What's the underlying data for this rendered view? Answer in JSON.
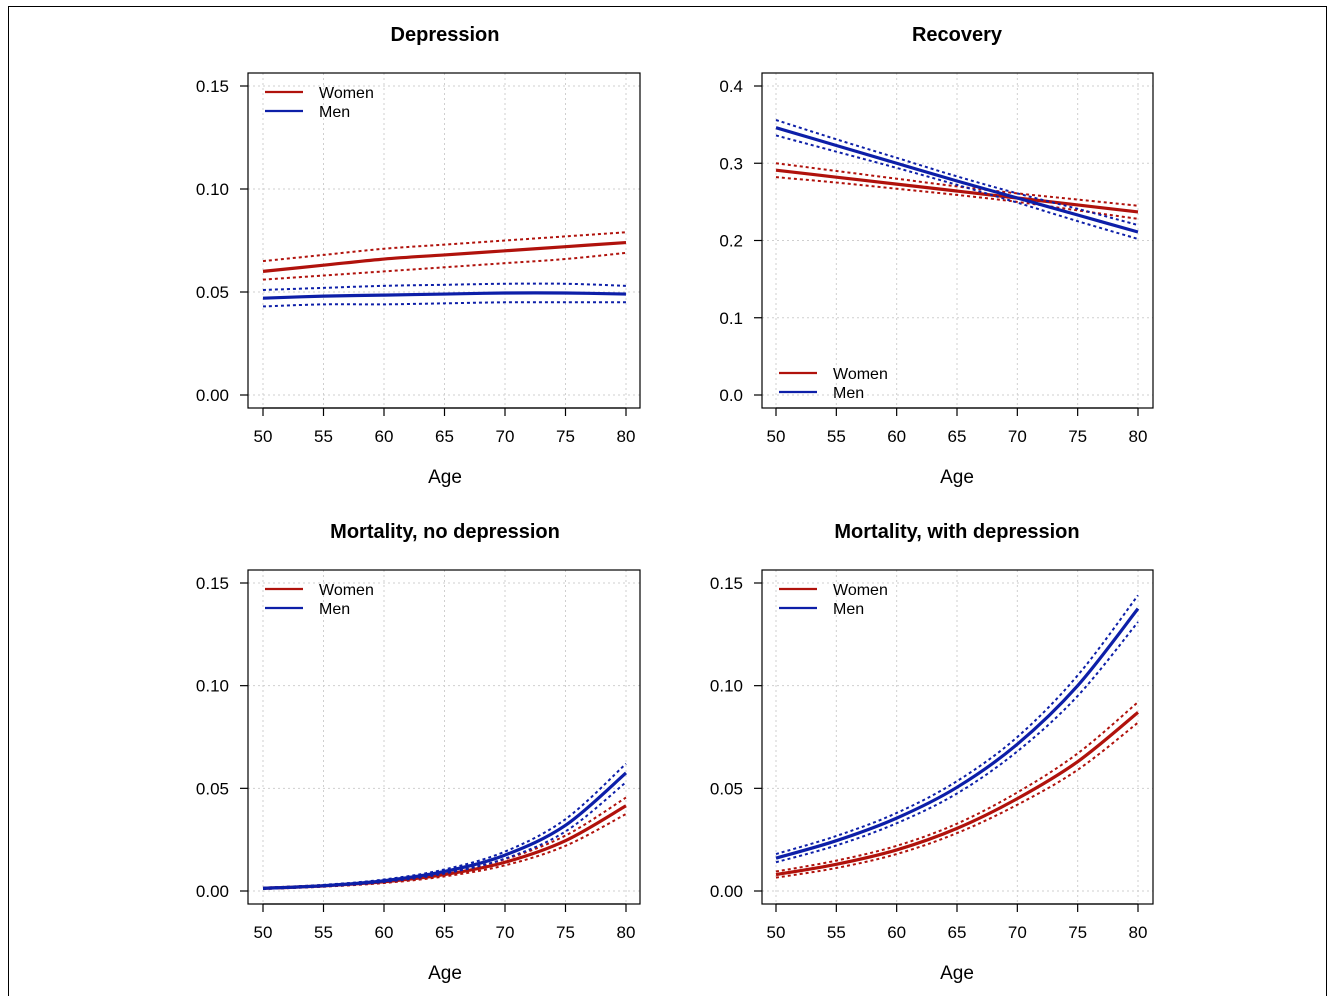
{
  "colors": {
    "women": "#b0120c",
    "men": "#0d1fa8",
    "grid": "#cfcfcf",
    "axis": "#000000"
  },
  "chart_data": [
    {
      "type": "line",
      "title": "Depression",
      "xlabel": "Age",
      "ylabel": "",
      "xlim": [
        50,
        80
      ],
      "ylim": [
        0,
        0.15
      ],
      "xticks": [
        50,
        55,
        60,
        65,
        70,
        75,
        80
      ],
      "yticks": [
        0.0,
        0.05,
        0.1,
        0.15
      ],
      "ytick_labels": [
        "0.00",
        "0.05",
        "0.10",
        "0.15"
      ],
      "grid": true,
      "legend_position": "top-left",
      "x": [
        50,
        55,
        60,
        65,
        70,
        75,
        80
      ],
      "series": [
        {
          "name": "Women",
          "color_key": "women",
          "values": [
            0.06,
            0.063,
            0.066,
            0.068,
            0.07,
            0.072,
            0.074
          ],
          "lower": [
            0.056,
            0.058,
            0.06,
            0.062,
            0.064,
            0.066,
            0.069
          ],
          "upper": [
            0.065,
            0.068,
            0.071,
            0.073,
            0.075,
            0.077,
            0.079
          ]
        },
        {
          "name": "Men",
          "color_key": "men",
          "values": [
            0.047,
            0.048,
            0.0485,
            0.049,
            0.0495,
            0.0495,
            0.049
          ],
          "lower": [
            0.043,
            0.044,
            0.044,
            0.0445,
            0.045,
            0.045,
            0.045
          ],
          "upper": [
            0.051,
            0.052,
            0.053,
            0.0535,
            0.054,
            0.054,
            0.053
          ]
        }
      ]
    },
    {
      "type": "line",
      "title": "Recovery",
      "xlabel": "Age",
      "ylabel": "",
      "xlim": [
        50,
        80
      ],
      "ylim": [
        0,
        0.4
      ],
      "xticks": [
        50,
        55,
        60,
        65,
        70,
        75,
        80
      ],
      "yticks": [
        0.0,
        0.1,
        0.2,
        0.3,
        0.4
      ],
      "ytick_labels": [
        "0.0",
        "0.1",
        "0.2",
        "0.3",
        "0.4"
      ],
      "grid": true,
      "legend_position": "bottom-left",
      "x": [
        50,
        55,
        60,
        65,
        70,
        75,
        80
      ],
      "series": [
        {
          "name": "Women",
          "color_key": "women",
          "values": [
            0.291,
            0.282,
            0.273,
            0.264,
            0.255,
            0.246,
            0.237
          ],
          "lower": [
            0.282,
            0.275,
            0.267,
            0.259,
            0.25,
            0.239,
            0.228
          ],
          "upper": [
            0.3,
            0.29,
            0.28,
            0.27,
            0.261,
            0.253,
            0.245
          ]
        },
        {
          "name": "Men",
          "color_key": "men",
          "values": [
            0.346,
            0.323,
            0.3,
            0.277,
            0.255,
            0.233,
            0.211
          ],
          "lower": [
            0.336,
            0.315,
            0.294,
            0.272,
            0.249,
            0.225,
            0.202
          ],
          "upper": [
            0.356,
            0.331,
            0.307,
            0.283,
            0.261,
            0.241,
            0.22
          ]
        }
      ]
    },
    {
      "type": "line",
      "title": "Mortality, no depression",
      "xlabel": "Age",
      "ylabel": "",
      "xlim": [
        50,
        80
      ],
      "ylim": [
        0,
        0.15
      ],
      "xticks": [
        50,
        55,
        60,
        65,
        70,
        75,
        80
      ],
      "yticks": [
        0.0,
        0.05,
        0.1,
        0.15
      ],
      "ytick_labels": [
        "0.00",
        "0.05",
        "0.10",
        "0.15"
      ],
      "grid": true,
      "legend_position": "top-left",
      "x": [
        50,
        55,
        60,
        65,
        70,
        75,
        80
      ],
      "series": [
        {
          "name": "Women",
          "color_key": "women",
          "values": [
            0.0013,
            0.0025,
            0.0045,
            0.008,
            0.014,
            0.0245,
            0.0415
          ],
          "lower": [
            0.001,
            0.0021,
            0.0039,
            0.0071,
            0.0125,
            0.022,
            0.0375
          ],
          "upper": [
            0.0016,
            0.0029,
            0.0051,
            0.0089,
            0.0155,
            0.027,
            0.0455
          ]
        },
        {
          "name": "Men",
          "color_key": "men",
          "values": [
            0.0013,
            0.0026,
            0.005,
            0.0095,
            0.0175,
            0.032,
            0.0575
          ],
          "lower": [
            0.001,
            0.0022,
            0.0044,
            0.0085,
            0.0158,
            0.029,
            0.053
          ],
          "upper": [
            0.0016,
            0.003,
            0.0056,
            0.0105,
            0.0192,
            0.035,
            0.062
          ]
        }
      ]
    },
    {
      "type": "line",
      "title": "Mortality, with depression",
      "xlabel": "Age",
      "ylabel": "",
      "xlim": [
        50,
        80
      ],
      "ylim": [
        0,
        0.15
      ],
      "xticks": [
        50,
        55,
        60,
        65,
        70,
        75,
        80
      ],
      "yticks": [
        0.0,
        0.05,
        0.1,
        0.15
      ],
      "ytick_labels": [
        "0.00",
        "0.05",
        "0.10",
        "0.15"
      ],
      "grid": true,
      "legend_position": "top-left",
      "x": [
        50,
        55,
        60,
        65,
        70,
        75,
        80
      ],
      "series": [
        {
          "name": "Women",
          "color_key": "women",
          "values": [
            0.008,
            0.013,
            0.02,
            0.0305,
            0.045,
            0.063,
            0.087
          ],
          "lower": [
            0.0065,
            0.0112,
            0.018,
            0.0282,
            0.042,
            0.059,
            0.082
          ],
          "upper": [
            0.0095,
            0.0148,
            0.022,
            0.0328,
            0.048,
            0.067,
            0.092
          ]
        },
        {
          "name": "Men",
          "color_key": "men",
          "values": [
            0.016,
            0.0245,
            0.0355,
            0.0505,
            0.0715,
            0.1,
            0.1375
          ],
          "lower": [
            0.014,
            0.0222,
            0.033,
            0.0475,
            0.068,
            0.095,
            0.131
          ],
          "upper": [
            0.018,
            0.0268,
            0.038,
            0.0535,
            0.075,
            0.105,
            0.144
          ]
        }
      ]
    }
  ]
}
